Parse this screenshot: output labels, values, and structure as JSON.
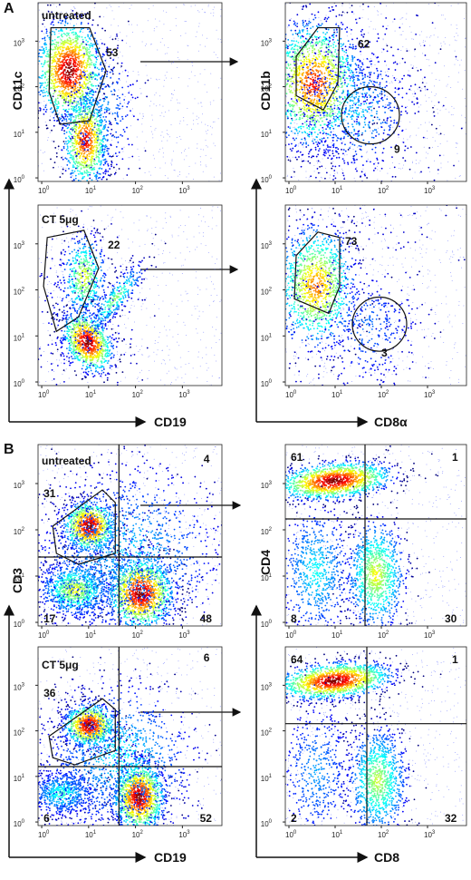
{
  "tick_base": "10",
  "ticks": [
    "0",
    "1",
    "2",
    "3"
  ],
  "panels": [
    {
      "label": "A",
      "y_left": "CD11c",
      "x_left": "CD19",
      "y_right": "CD11b",
      "x_right": "CD8α",
      "plots": [
        {
          "condition": "untreated",
          "numbers": [
            53
          ]
        },
        {
          "numbers": [
            62,
            9
          ]
        },
        {
          "condition": "CT 5μg",
          "numbers": [
            22
          ]
        },
        {
          "numbers": [
            73,
            3
          ]
        }
      ]
    },
    {
      "label": "B",
      "y_left": "CD3",
      "x_left": "CD19",
      "y_right": "CD4",
      "x_right": "CD8",
      "plots": [
        {
          "condition": "untreated",
          "numbers": [
            4,
            31,
            17,
            48
          ]
        },
        {
          "numbers": [
            61,
            1,
            8,
            30
          ]
        },
        {
          "condition": "CT 5μg",
          "numbers": [
            6,
            36,
            6,
            52
          ]
        },
        {
          "numbers": [
            64,
            1,
            2,
            32
          ]
        }
      ]
    }
  ]
}
